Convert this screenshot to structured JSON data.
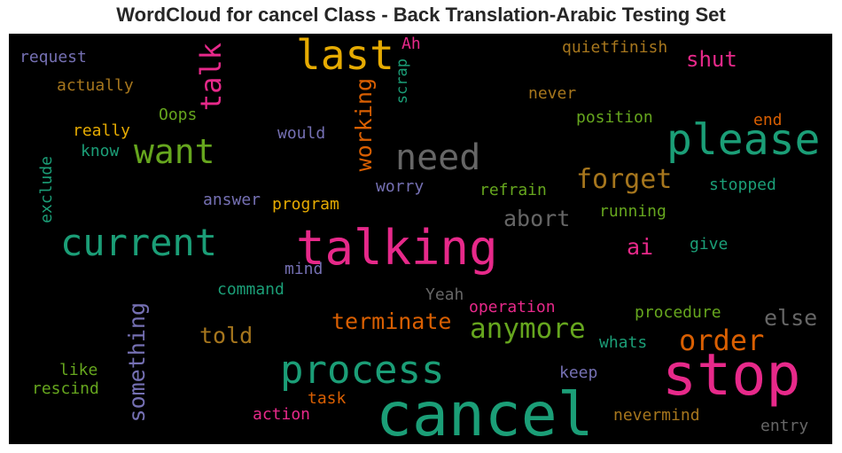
{
  "chart_data": {
    "type": "wordcloud",
    "title": "WordCloud for cancel Class - Back Translation-Arabic Testing Set",
    "colormap": "Dark2",
    "background": "#000000",
    "words": [
      {
        "text": "cancel",
        "weight": 1.0,
        "color": "#1b9e77"
      },
      {
        "text": "stop",
        "weight": 0.92,
        "color": "#e7298a"
      },
      {
        "text": "talking",
        "weight": 0.65,
        "color": "#e7298a"
      },
      {
        "text": "please",
        "weight": 0.62,
        "color": "#1b9e77"
      },
      {
        "text": "process",
        "weight": 0.6,
        "color": "#1b9e77"
      },
      {
        "text": "current",
        "weight": 0.58,
        "color": "#1b9e77"
      },
      {
        "text": "last",
        "weight": 0.56,
        "color": "#e6ab02"
      },
      {
        "text": "need",
        "weight": 0.55,
        "color": "#666666"
      },
      {
        "text": "want",
        "weight": 0.54,
        "color": "#66a61e"
      },
      {
        "text": "talk",
        "weight": 0.44,
        "color": "#e7298a"
      },
      {
        "text": "order",
        "weight": 0.42,
        "color": "#d95f02"
      },
      {
        "text": "anymore",
        "weight": 0.4,
        "color": "#66a61e"
      },
      {
        "text": "forget",
        "weight": 0.4,
        "color": "#a6761d"
      },
      {
        "text": "working",
        "weight": 0.37,
        "color": "#d95f02"
      },
      {
        "text": "something",
        "weight": 0.37,
        "color": "#7570b3"
      },
      {
        "text": "terminate",
        "weight": 0.35,
        "color": "#d95f02"
      },
      {
        "text": "abort",
        "weight": 0.33,
        "color": "#666666"
      },
      {
        "text": "told",
        "weight": 0.32,
        "color": "#a6761d"
      },
      {
        "text": "shut",
        "weight": 0.32,
        "color": "#e7298a"
      },
      {
        "text": "else",
        "weight": 0.32,
        "color": "#666666"
      },
      {
        "text": "ai",
        "weight": 0.32,
        "color": "#e7298a"
      },
      {
        "text": "scrap",
        "weight": 0.25,
        "color": "#1b9e77"
      },
      {
        "text": "Ah",
        "weight": 0.25,
        "color": "#e7298a"
      },
      {
        "text": "quietfinish",
        "weight": 0.25,
        "color": "#a6761d"
      },
      {
        "text": "request",
        "weight": 0.25,
        "color": "#7570b3"
      },
      {
        "text": "actually",
        "weight": 0.25,
        "color": "#a6761d"
      },
      {
        "text": "never",
        "weight": 0.25,
        "color": "#a6761d"
      },
      {
        "text": "Oops",
        "weight": 0.25,
        "color": "#66a61e"
      },
      {
        "text": "position",
        "weight": 0.25,
        "color": "#66a61e"
      },
      {
        "text": "end",
        "weight": 0.25,
        "color": "#d95f02"
      },
      {
        "text": "really",
        "weight": 0.25,
        "color": "#e6ab02"
      },
      {
        "text": "would",
        "weight": 0.25,
        "color": "#7570b3"
      },
      {
        "text": "know",
        "weight": 0.25,
        "color": "#1b9e77"
      },
      {
        "text": "exclude",
        "weight": 0.25,
        "color": "#1b9e77"
      },
      {
        "text": "worry",
        "weight": 0.25,
        "color": "#7570b3"
      },
      {
        "text": "refrain",
        "weight": 0.25,
        "color": "#66a61e"
      },
      {
        "text": "stopped",
        "weight": 0.25,
        "color": "#1b9e77"
      },
      {
        "text": "answer",
        "weight": 0.25,
        "color": "#7570b3"
      },
      {
        "text": "program",
        "weight": 0.25,
        "color": "#e6ab02"
      },
      {
        "text": "running",
        "weight": 0.25,
        "color": "#66a61e"
      },
      {
        "text": "give",
        "weight": 0.25,
        "color": "#1b9e77"
      },
      {
        "text": "mind",
        "weight": 0.25,
        "color": "#7570b3"
      },
      {
        "text": "command",
        "weight": 0.25,
        "color": "#1b9e77"
      },
      {
        "text": "Yeah",
        "weight": 0.25,
        "color": "#666666"
      },
      {
        "text": "operation",
        "weight": 0.25,
        "color": "#e7298a"
      },
      {
        "text": "procedure",
        "weight": 0.25,
        "color": "#66a61e"
      },
      {
        "text": "whats",
        "weight": 0.25,
        "color": "#1b9e77"
      },
      {
        "text": "like",
        "weight": 0.25,
        "color": "#66a61e"
      },
      {
        "text": "rescind",
        "weight": 0.25,
        "color": "#66a61e"
      },
      {
        "text": "keep",
        "weight": 0.25,
        "color": "#7570b3"
      },
      {
        "text": "task",
        "weight": 0.25,
        "color": "#d95f02"
      },
      {
        "text": "action",
        "weight": 0.25,
        "color": "#e7298a"
      },
      {
        "text": "nevermind",
        "weight": 0.25,
        "color": "#a6761d"
      },
      {
        "text": "entry",
        "weight": 0.25,
        "color": "#666666"
      }
    ]
  }
}
